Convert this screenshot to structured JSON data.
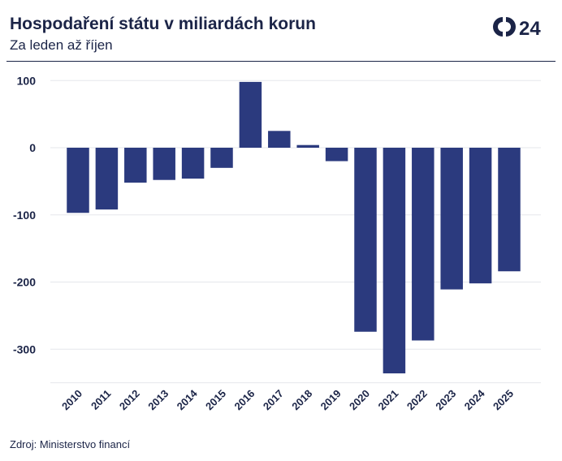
{
  "header": {
    "title": "Hospodaření státu v miliardách korun",
    "subtitle": "Za leden až říjen",
    "logo_text": "24"
  },
  "footer": {
    "source": "Zdroj: Ministerstvo financí"
  },
  "colors": {
    "bar": "#2b3a7e",
    "text": "#1b2447",
    "grid": "#e5e7eb"
  },
  "chart_data": {
    "type": "bar",
    "categories": [
      "2010",
      "2011",
      "2012",
      "2013",
      "2014",
      "2015",
      "2016",
      "2017",
      "2018",
      "2019",
      "2020",
      "2021",
      "2022",
      "2023",
      "2024",
      "2025"
    ],
    "values": [
      -97,
      -92,
      -52,
      -48,
      -46,
      -30,
      98,
      25,
      4,
      -20,
      -274,
      -336,
      -287,
      -211,
      -202,
      -184
    ],
    "ylim": [
      -350,
      100
    ],
    "yticks": [
      100,
      0,
      -100,
      -200,
      -300
    ],
    "ytick_labels": [
      "100",
      "0",
      "-100",
      "-200",
      "-300"
    ],
    "grid": true,
    "xlabel": "",
    "ylabel": ""
  }
}
